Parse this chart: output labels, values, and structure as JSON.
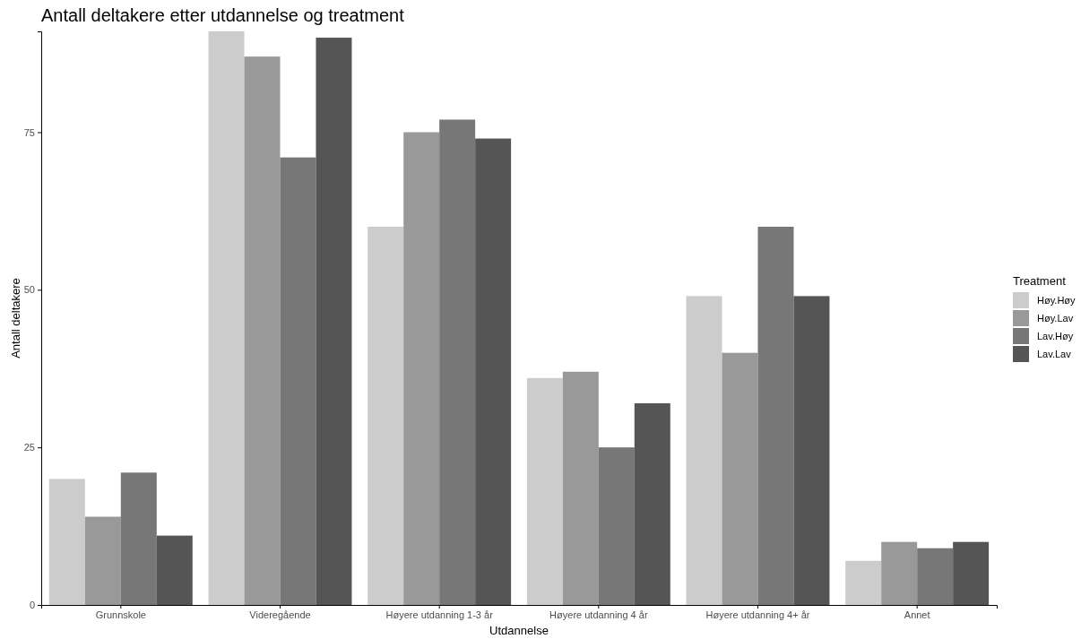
{
  "chart_data": {
    "type": "bar",
    "title": "Antall deltakere etter utdannelse og treatment",
    "xlabel": "Utdannelse",
    "ylabel": "Antall deltakere",
    "legend_title": "Treatment",
    "legend": "right",
    "categories": [
      "Grunnskole",
      "Videregående",
      "Høyere utdanning 1-3 år",
      "Høyere utdanning 4 år",
      "Høyere utdanning 4+ år",
      "Annet"
    ],
    "series": [
      {
        "name": "Høy.Høy",
        "color": "#cccccc",
        "values": [
          20,
          91,
          60,
          36,
          49,
          7
        ]
      },
      {
        "name": "Høy.Lav",
        "color": "#999999",
        "values": [
          14,
          87,
          75,
          37,
          40,
          10
        ]
      },
      {
        "name": "Lav.Høy",
        "color": "#777777",
        "values": [
          21,
          71,
          77,
          25,
          60,
          9
        ]
      },
      {
        "name": "Lav.Lav",
        "color": "#555555",
        "values": [
          11,
          90,
          74,
          32,
          49,
          10
        ]
      }
    ],
    "ylim": [
      0,
      91
    ],
    "yticks": [
      0,
      25,
      50,
      75
    ],
    "grid": false
  }
}
